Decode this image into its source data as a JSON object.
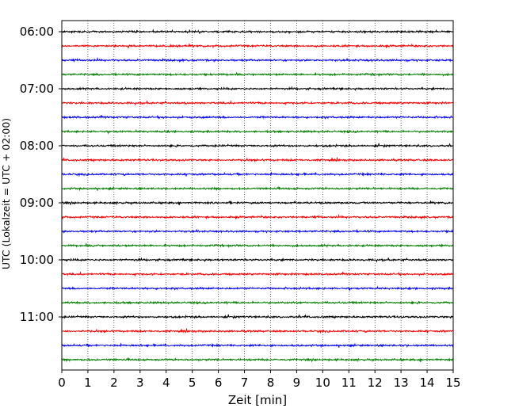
{
  "chart_data": {
    "type": "line",
    "subtype": "seismic helicorder",
    "xlabel": "Zeit  [min]",
    "ylabel": "UTC (Lokalzeit = UTC + 02:00)",
    "xlim": [
      0,
      15
    ],
    "x_ticks": [
      "0",
      "1",
      "2",
      "3",
      "4",
      "5",
      "6",
      "7",
      "8",
      "9",
      "10",
      "11",
      "12",
      "13",
      "14",
      "15"
    ],
    "y_ticks": [
      "06:00",
      "07:00",
      "08:00",
      "09:00",
      "10:00",
      "11:00"
    ],
    "grid": "vertical dotted at every minute",
    "row_interval_minutes": 15,
    "row_start_times": [
      "06:00",
      "06:15",
      "06:30",
      "06:45",
      "07:00",
      "07:15",
      "07:30",
      "07:45",
      "08:00",
      "08:15",
      "08:30",
      "08:45",
      "09:00",
      "09:15",
      "09:30",
      "09:45",
      "10:00",
      "10:15",
      "10:30",
      "10:45",
      "11:00",
      "11:15",
      "11:30",
      "11:45"
    ],
    "trace_color_cycle": [
      "#000000",
      "#ff0000",
      "#0000ff",
      "#008000"
    ],
    "note_values": "traces are continuous low-amplitude noise with no distinct events"
  }
}
